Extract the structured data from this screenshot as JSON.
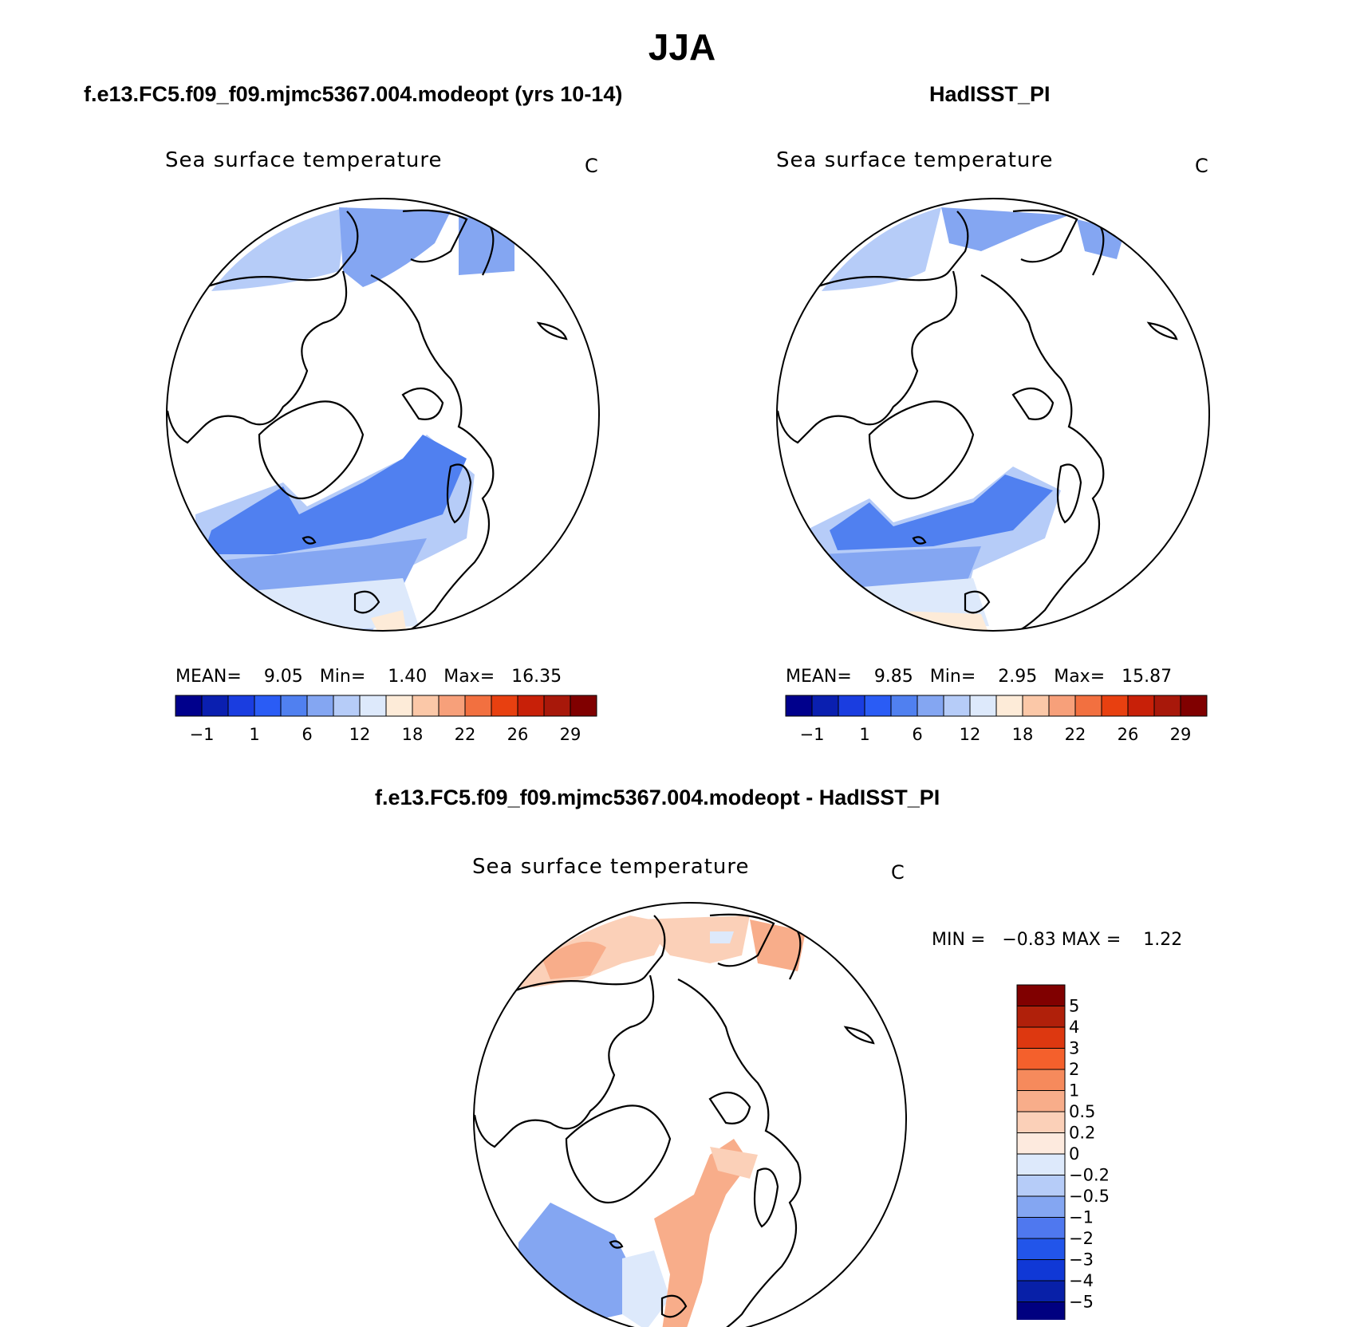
{
  "title": "JJA",
  "panels": [
    {
      "id": "model",
      "title": "f.e13.FC5.f09_f09.mjmc5367.004.modeopt (yrs 10-14)",
      "variable": "Sea surface temperature",
      "units": "C",
      "stats": {
        "mean_label": "MEAN=",
        "mean": "9.05",
        "min_label": "Min=",
        "min": "1.40",
        "max_label": "Max=",
        "max": "16.35"
      }
    },
    {
      "id": "obs",
      "title": "HadISST_PI",
      "variable": "Sea surface temperature",
      "units": "C",
      "stats": {
        "mean_label": "MEAN=",
        "mean": "9.85",
        "min_label": "Min=",
        "min": "2.95",
        "max_label": "Max=",
        "max": "15.87"
      }
    },
    {
      "id": "diff",
      "title": "f.e13.FC5.f09_f09.mjmc5367.004.modeopt - HadISST_PI",
      "variable": "Sea surface temperature",
      "units": "C",
      "stats": {
        "min_label": "MIN =",
        "min": "−0.83",
        "max_label": "MAX =",
        "max": "1.22"
      }
    }
  ],
  "colorbar_sst": {
    "colors": [
      "#00008c",
      "#0a1fb0",
      "#1a3de0",
      "#2a5cf5",
      "#5080f0",
      "#84a6f2",
      "#b6ccf8",
      "#dde9fb",
      "#fdebd8",
      "#fbc8a8",
      "#f7a07a",
      "#f27040",
      "#e84010",
      "#c82008",
      "#a8180a",
      "#800000"
    ],
    "labels": [
      "−1",
      "1",
      "6",
      "12",
      "18",
      "22",
      "26",
      "29"
    ]
  },
  "colorbar_diff": {
    "colors": [
      "#800000",
      "#b0200a",
      "#dd3810",
      "#f4602c",
      "#f68a5c",
      "#f8ad8a",
      "#fbd0b8",
      "#fdeade",
      "#dde9fb",
      "#b6ccf8",
      "#84a6f2",
      "#4f78ef",
      "#2255ea",
      "#1038d6",
      "#0820a8",
      "#000080"
    ],
    "labels": [
      "5",
      "4",
      "3",
      "2",
      "1",
      "0.5",
      "0.2",
      "0",
      "−0.2",
      "−0.5",
      "−1",
      "−2",
      "−3",
      "−4",
      "−5"
    ]
  },
  "colors": {
    "sst_light": "#b6ccf8",
    "sst_lighter": "#dde9fb",
    "sst_mid": "#84a6f2",
    "sst_deep": "#5080f0",
    "sst_warm": "#fdebd8",
    "diff_warm": "#f8ad8a",
    "diff_warm_light": "#fbd0b8",
    "diff_cool": "#84a6f2",
    "coast": "#000000"
  }
}
